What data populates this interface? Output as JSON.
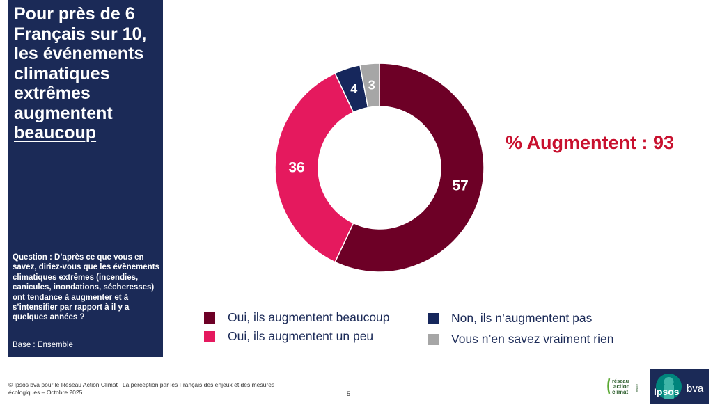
{
  "sidebar": {
    "title_main": "Pour près de 6 Français sur 10, les événements climatiques extrêmes augmentent",
    "title_underlined": "beaucoup",
    "question": "Question : D’après ce que vous en savez, diriez-vous que les évènements climatiques extrêmes (incendies, canicules, inondations, sécheresses) ont tendance à augmenter et à s’intensifier par rapport à il y a quelques années ?",
    "base": "Base : Ensemble"
  },
  "kpi": {
    "text": "% Augmentent : 93",
    "color": "#c8102e"
  },
  "chart_data": {
    "type": "pie",
    "variant": "donut",
    "categories": [
      "Oui, ils augmentent beaucoup",
      "Oui, ils augmentent un peu",
      "Non, ils n’augmentent pas",
      "Vous n’en savez vraiment rien"
    ],
    "values": [
      57,
      36,
      4,
      3
    ],
    "data_labels": [
      "57",
      "36",
      "4",
      "3"
    ],
    "colors": [
      "#6d0026",
      "#e5195e",
      "#16275c",
      "#a6a6a6"
    ],
    "start": "top, clockwise",
    "legend_placement": "bottom"
  },
  "legend": [
    {
      "label": "Oui, ils augmentent beaucoup",
      "color": "#6d0026"
    },
    {
      "label": "Oui, ils augmentent un peu",
      "color": "#e5195e"
    },
    {
      "label": "Non, ils n’augmentent pas",
      "color": "#16275c"
    },
    {
      "label": "Vous n’en savez vraiment rien",
      "color": "#a6a6a6"
    }
  ],
  "footer": {
    "credit": "© Ipsos bva pour le Réseau Action Climat | La perception par les Français des enjeux et des mesures écologiques – Octobre 2025",
    "page_number": "5"
  },
  "logos": {
    "rac_text": "réseau action climat france",
    "ipsos_text": "Ipsos",
    "bva_text": "bva"
  }
}
